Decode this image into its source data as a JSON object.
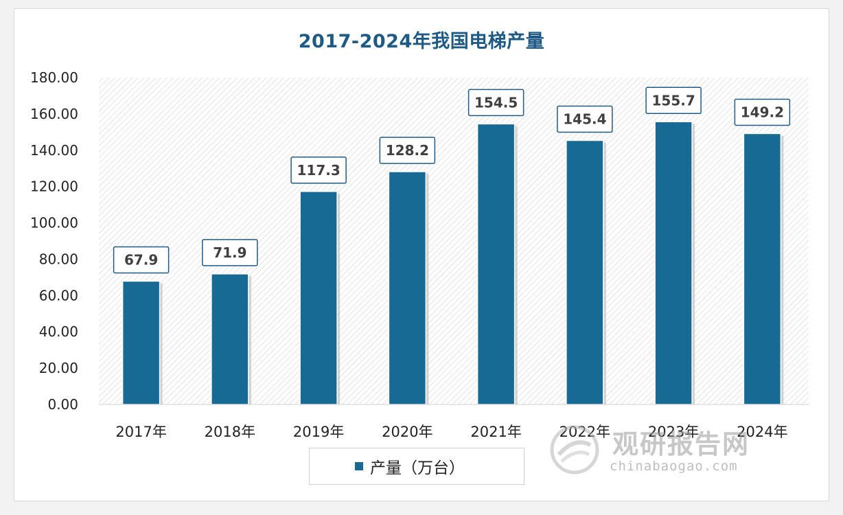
{
  "chart_data": {
    "type": "bar",
    "title": "2017-2024年我国电梯产量",
    "categories": [
      "2017年",
      "2018年",
      "2019年",
      "2020年",
      "2021年",
      "2022年",
      "2023年",
      "2024年"
    ],
    "series": [
      {
        "name": "产量（万台）",
        "values": [
          67.9,
          71.9,
          117.3,
          128.2,
          154.5,
          145.4,
          155.7,
          149.2
        ],
        "value_labels": [
          "67.9",
          "71.9",
          "117.3",
          "128.2",
          "154.5",
          "145.4",
          "155.7",
          "149.2"
        ]
      }
    ],
    "ylim": [
      0,
      180
    ],
    "yticks": [
      "0.00",
      "20.00",
      "40.00",
      "60.00",
      "80.00",
      "100.00",
      "120.00",
      "140.00",
      "160.00",
      "180.00"
    ],
    "xlabel": "",
    "ylabel": "",
    "legend_position": "bottom",
    "background": "diagonal-hatch",
    "colors": {
      "bar": "#176a93",
      "title": "#1f5a84"
    }
  },
  "watermark": {
    "name": "观研报告网",
    "url": "chinabaogao.com"
  }
}
